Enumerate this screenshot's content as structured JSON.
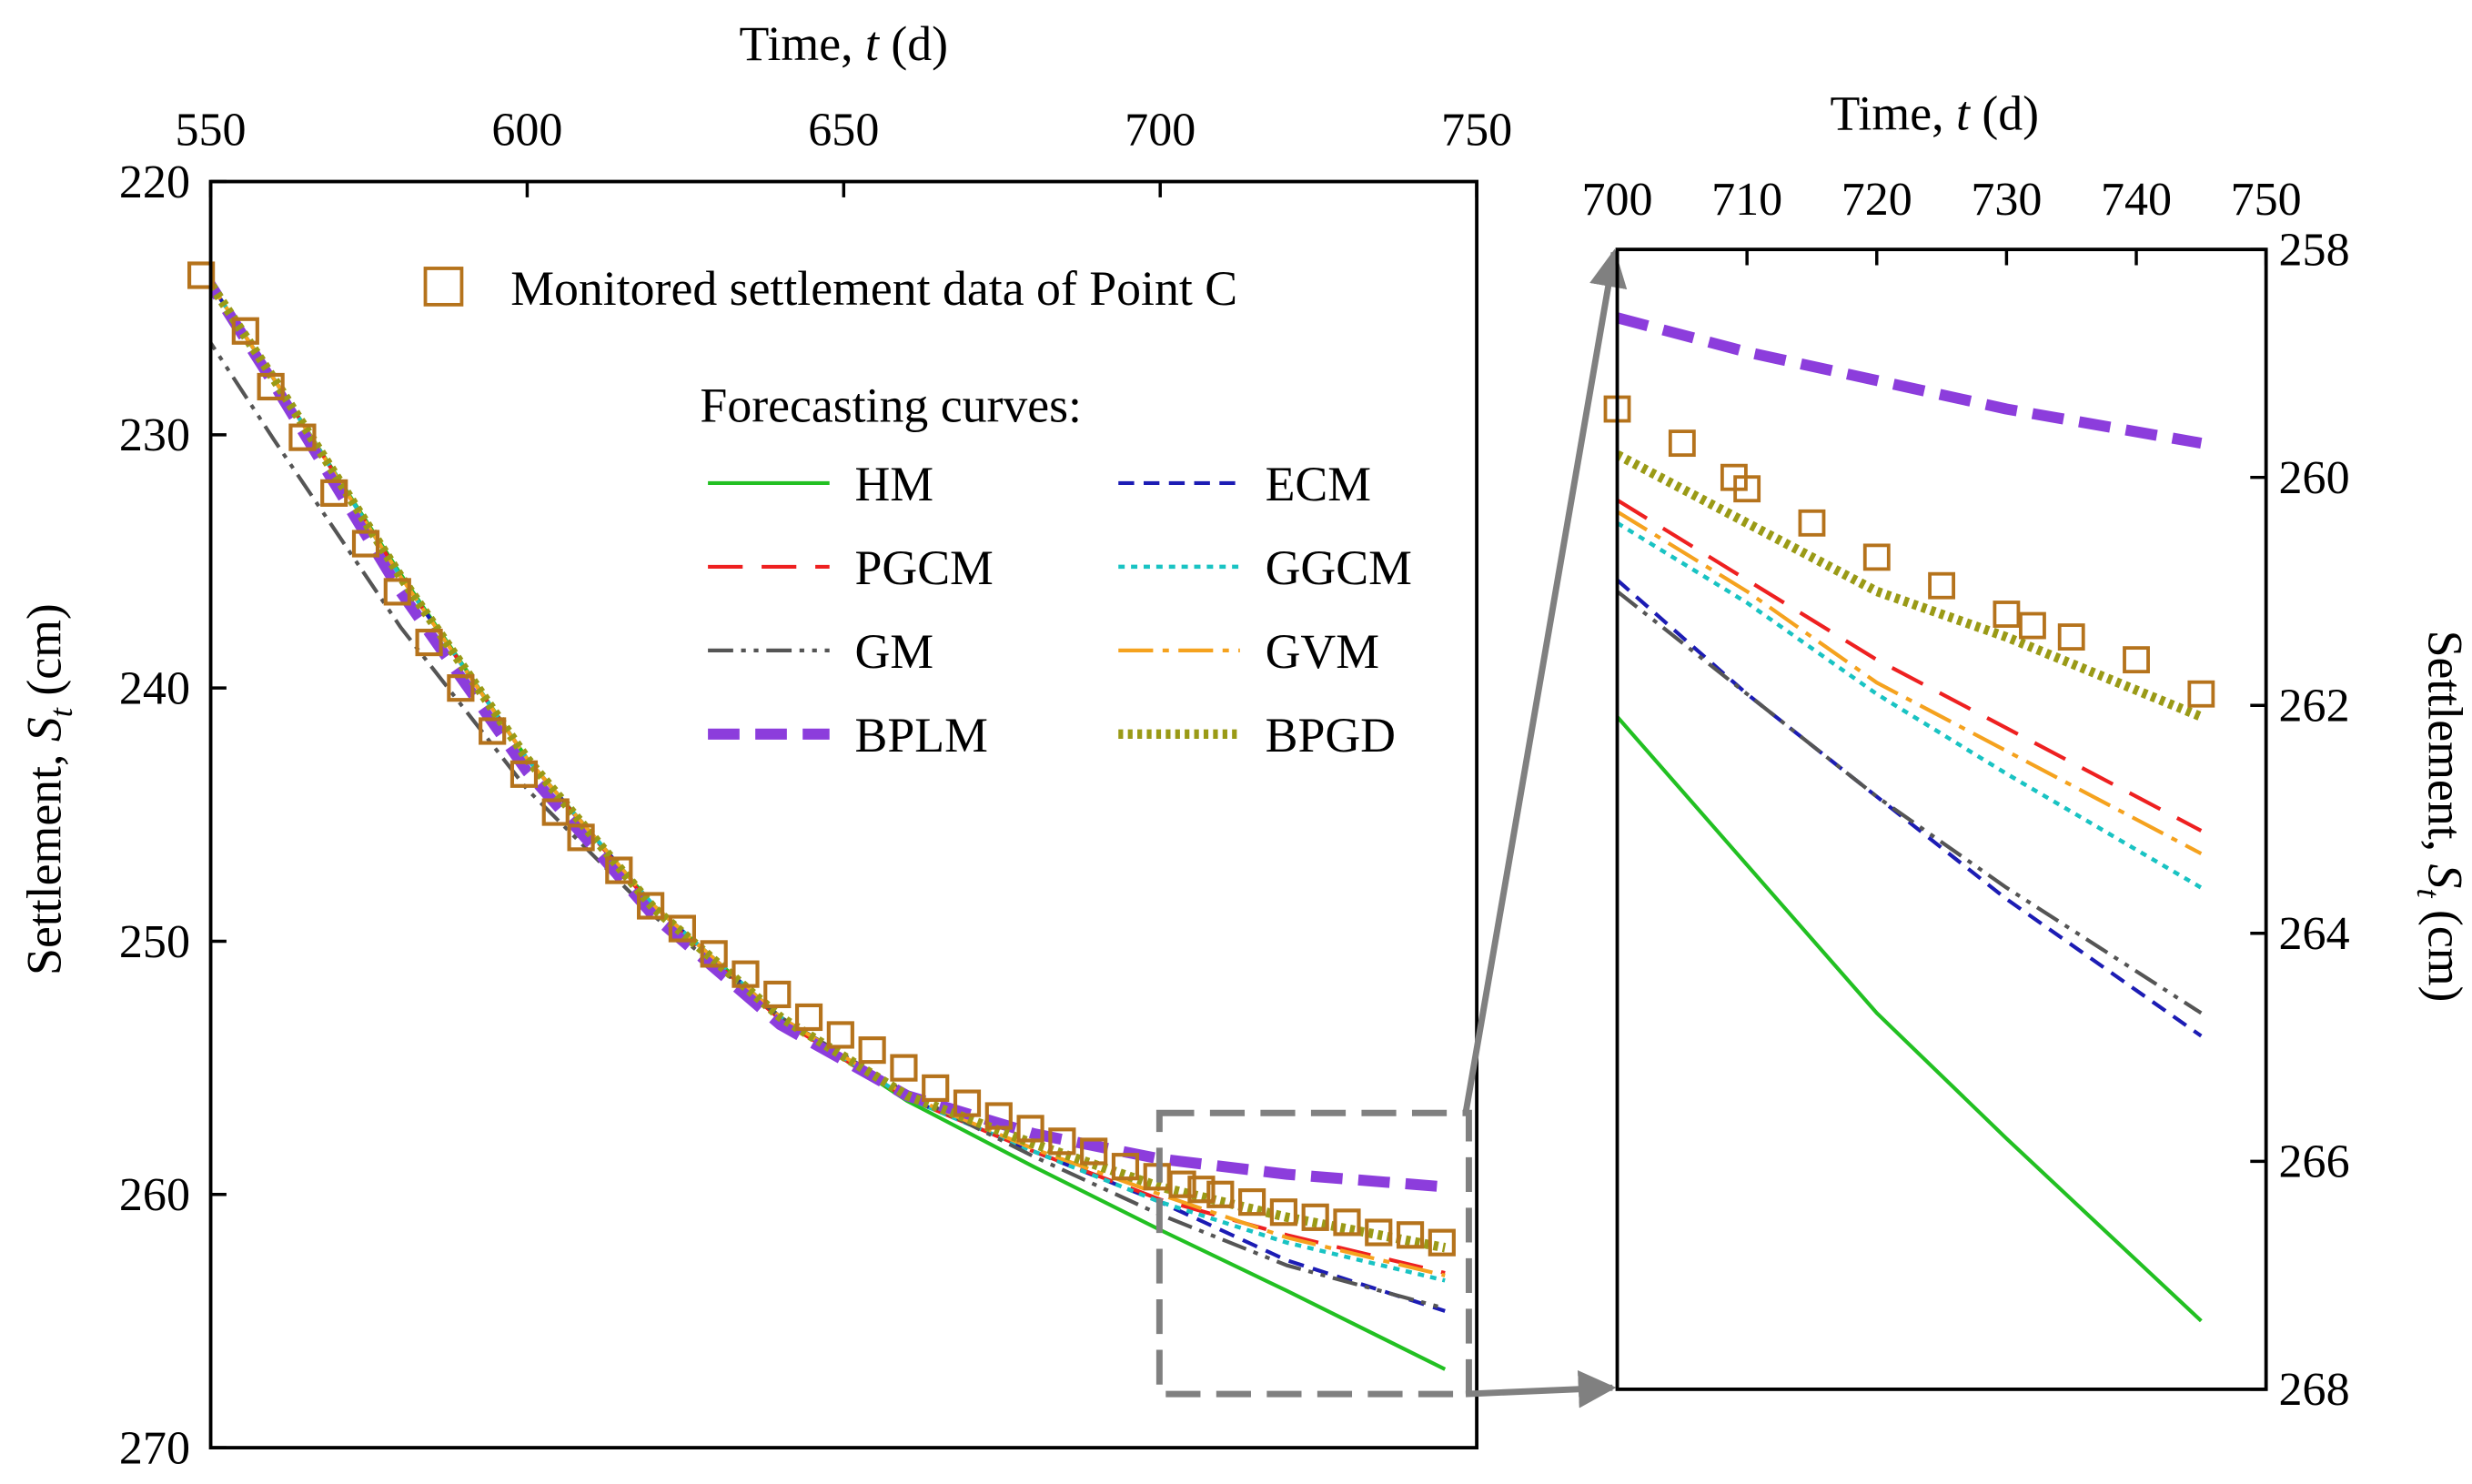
{
  "chart_data": [
    {
      "type": "line",
      "name": "main",
      "title": "",
      "xlabel": "Time, t (d)",
      "xlabel_parts": [
        "Time, ",
        "t",
        " (d)"
      ],
      "ylabel": "Settlement, St (cm)",
      "ylabel_parts": [
        "Settlement, ",
        "S",
        "t",
        " (cm)"
      ],
      "xlim": [
        550,
        750
      ],
      "ylim": [
        270,
        220
      ],
      "xticks": [
        550,
        600,
        650,
        700,
        750
      ],
      "yticks": [
        220,
        230,
        240,
        250,
        260,
        270
      ],
      "x_axis_position": "top",
      "y_axis_position": "left",
      "legend_title": "Forecasting curves:",
      "monitored": {
        "name": "Monitored settlement data of Point C",
        "color": "#b5731c",
        "points": [
          [
            548.5,
            223.7
          ],
          [
            555.5,
            225.9
          ],
          [
            559.5,
            228.1
          ],
          [
            564.5,
            230.1
          ],
          [
            569.5,
            232.3
          ],
          [
            574.5,
            234.3
          ],
          [
            579.5,
            236.2
          ],
          [
            584.5,
            238.2
          ],
          [
            589.5,
            240.0
          ],
          [
            594.5,
            241.7
          ],
          [
            599.5,
            243.4
          ],
          [
            604.5,
            244.9
          ],
          [
            608.5,
            245.9
          ],
          [
            614.5,
            247.2
          ],
          [
            619.5,
            248.6
          ],
          [
            624.5,
            249.5
          ],
          [
            629.5,
            250.5
          ],
          [
            634.5,
            251.3
          ],
          [
            639.5,
            252.1
          ],
          [
            644.5,
            253.0
          ],
          [
            649.5,
            253.7
          ],
          [
            654.5,
            254.3
          ],
          [
            659.5,
            255.0
          ],
          [
            664.5,
            255.8
          ],
          [
            669.5,
            256.4
          ],
          [
            674.5,
            256.9
          ],
          [
            679.5,
            257.4
          ],
          [
            684.5,
            257.9
          ],
          [
            689.5,
            258.3
          ],
          [
            694.5,
            258.9
          ],
          [
            699.5,
            259.3
          ],
          [
            703.5,
            259.6
          ],
          [
            706.5,
            259.8
          ],
          [
            709.5,
            260.0
          ],
          [
            714.5,
            260.3
          ],
          [
            719.5,
            260.7
          ],
          [
            724.5,
            260.9
          ],
          [
            729.5,
            261.1
          ],
          [
            734.5,
            261.5
          ],
          [
            739.5,
            261.6
          ],
          [
            744.5,
            261.9
          ]
        ]
      },
      "series": [
        {
          "name": "HM",
          "color": "#22c022",
          "dash": "",
          "width": 2.4,
          "points": [
            [
              548.5,
              223.5
            ],
            [
              560,
              227.8
            ],
            [
              580,
              235.5
            ],
            [
              600,
              242.8
            ],
            [
              620,
              248.6
            ],
            [
              640,
              253.0
            ],
            [
              660,
              256.3
            ],
            [
              680,
              258.9
            ],
            [
              700,
              261.4
            ],
            [
              720,
              263.8
            ],
            [
              745,
              266.9
            ]
          ]
        },
        {
          "name": "ECM",
          "color": "#1c1cb4",
          "dash": "10 6",
          "width": 2.4,
          "points": [
            [
              548.5,
              223.5
            ],
            [
              560,
              227.8
            ],
            [
              580,
              235.6
            ],
            [
              600,
              242.8
            ],
            [
              620,
              248.6
            ],
            [
              640,
              253.0
            ],
            [
              660,
              256.2
            ],
            [
              680,
              258.3
            ],
            [
              700,
              260.3
            ],
            [
              720,
              262.6
            ],
            [
              745,
              264.6
            ]
          ]
        },
        {
          "name": "PGCM",
          "color": "#ee2020",
          "dash": "22 12",
          "width": 2.4,
          "points": [
            [
              548.5,
              223.5
            ],
            [
              560,
              227.8
            ],
            [
              580,
              235.6
            ],
            [
              600,
              242.8
            ],
            [
              620,
              248.7
            ],
            [
              640,
              253.1
            ],
            [
              660,
              256.2
            ],
            [
              680,
              258.3
            ],
            [
              700,
              260.2
            ],
            [
              720,
              261.6
            ],
            [
              745,
              263.1
            ]
          ]
        },
        {
          "name": "GGCM",
          "color": "#19c3c3",
          "dash": "4 4",
          "width": 2.6,
          "points": [
            [
              548.5,
              223.5
            ],
            [
              560,
              227.8
            ],
            [
              580,
              235.6
            ],
            [
              600,
              242.8
            ],
            [
              620,
              248.6
            ],
            [
              640,
              253.0
            ],
            [
              660,
              256.2
            ],
            [
              680,
              258.3
            ],
            [
              700,
              260.3
            ],
            [
              720,
              261.9
            ],
            [
              745,
              263.4
            ]
          ]
        },
        {
          "name": "GM",
          "color": "#555555",
          "dash": "16 5 3 5 3 5",
          "width": 2.4,
          "points": [
            [
              548.5,
              225.8
            ],
            [
              560,
              230.2
            ],
            [
              580,
              237.6
            ],
            [
              600,
              244.0
            ],
            [
              620,
              249.0
            ],
            [
              640,
              253.0
            ],
            [
              660,
              256.0
            ],
            [
              680,
              258.5
            ],
            [
              700,
              260.8
            ],
            [
              720,
              262.8
            ],
            [
              745,
              264.5
            ]
          ]
        },
        {
          "name": "GVM",
          "color": "#f5a21e",
          "dash": "22 6 4 6",
          "width": 2.4,
          "points": [
            [
              548.5,
              223.5
            ],
            [
              560,
              227.8
            ],
            [
              580,
              235.6
            ],
            [
              600,
              242.8
            ],
            [
              620,
              248.6
            ],
            [
              640,
              253.0
            ],
            [
              660,
              256.1
            ],
            [
              680,
              258.2
            ],
            [
              700,
              260.0
            ],
            [
              720,
              261.7
            ],
            [
              745,
              263.2
            ]
          ]
        },
        {
          "name": "BPLM",
          "color": "#8c3ddc",
          "dash": "20 10",
          "width": 7,
          "points": [
            [
              548.5,
              223.5
            ],
            [
              560,
              228.0
            ],
            [
              580,
              236.2
            ],
            [
              600,
              243.3
            ],
            [
              620,
              249.0
            ],
            [
              640,
              253.3
            ],
            [
              660,
              256.1
            ],
            [
              680,
              257.6
            ],
            [
              700,
              258.6
            ],
            [
              720,
              259.2
            ],
            [
              745,
              259.7
            ]
          ]
        },
        {
          "name": "BPGD",
          "color": "#9a9a16",
          "dash": "3 3",
          "width": 6,
          "points": [
            [
              548.5,
              223.5
            ],
            [
              560,
              227.8
            ],
            [
              580,
              235.6
            ],
            [
              600,
              242.8
            ],
            [
              620,
              248.7
            ],
            [
              640,
              253.0
            ],
            [
              660,
              256.1
            ],
            [
              680,
              258.0
            ],
            [
              700,
              259.7
            ],
            [
              720,
              260.9
            ],
            [
              745,
              262.1
            ]
          ]
        }
      ]
    },
    {
      "type": "line",
      "name": "inset",
      "title": "",
      "xlabel": "Time, t (d)",
      "xlabel_parts": [
        "Time, ",
        "t",
        " (d)"
      ],
      "ylabel": "Settlement, St (cm)",
      "ylabel_parts": [
        "Settlement, ",
        "S",
        "t",
        " (cm)"
      ],
      "xlim": [
        700,
        750
      ],
      "ylim": [
        268,
        258
      ],
      "xticks": [
        700,
        710,
        720,
        730,
        740,
        750
      ],
      "yticks": [
        258,
        260,
        262,
        264,
        266,
        268
      ],
      "x_axis_position": "top",
      "y_axis_position": "right",
      "monitored_points": [
        [
          700,
          259.4
        ],
        [
          705,
          259.7
        ],
        [
          709,
          260.0
        ],
        [
          710,
          260.1
        ],
        [
          715,
          260.4
        ],
        [
          720,
          260.7
        ],
        [
          725,
          260.95
        ],
        [
          730,
          261.2
        ],
        [
          732,
          261.3
        ],
        [
          735,
          261.4
        ],
        [
          740,
          261.6
        ],
        [
          745,
          261.9
        ]
      ],
      "series": [
        {
          "name": "HM",
          "points": [
            [
              700,
              262.1
            ],
            [
              710,
              263.4
            ],
            [
              720,
              264.7
            ],
            [
              730,
              265.8
            ],
            [
              745,
              267.4
            ]
          ]
        },
        {
          "name": "ECM",
          "points": [
            [
              700,
              260.9
            ],
            [
              710,
              261.9
            ],
            [
              720,
              262.8
            ],
            [
              730,
              263.7
            ],
            [
              745,
              264.9
            ]
          ]
        },
        {
          "name": "GM",
          "points": [
            [
              700,
              261.0
            ],
            [
              710,
              261.9
            ],
            [
              720,
              262.8
            ],
            [
              730,
              263.6
            ],
            [
              745,
              264.7
            ]
          ]
        },
        {
          "name": "GGCM",
          "points": [
            [
              700,
              260.4
            ],
            [
              710,
              261.1
            ],
            [
              720,
              261.9
            ],
            [
              730,
              262.6
            ],
            [
              745,
              263.6
            ]
          ]
        },
        {
          "name": "GVM",
          "points": [
            [
              700,
              260.3
            ],
            [
              710,
              261.0
            ],
            [
              720,
              261.8
            ],
            [
              730,
              262.4
            ],
            [
              745,
              263.3
            ]
          ]
        },
        {
          "name": "PGCM",
          "points": [
            [
              700,
              260.2
            ],
            [
              710,
              260.9
            ],
            [
              720,
              261.6
            ],
            [
              730,
              262.2
            ],
            [
              745,
              263.1
            ]
          ]
        },
        {
          "name": "BPGD",
          "points": [
            [
              700,
              259.8
            ],
            [
              710,
              260.4
            ],
            [
              720,
              261.0
            ],
            [
              730,
              261.4
            ],
            [
              745,
              262.1
            ]
          ]
        },
        {
          "name": "BPLM",
          "points": [
            [
              700,
              258.6
            ],
            [
              710,
              258.9
            ],
            [
              720,
              259.15
            ],
            [
              730,
              259.4
            ],
            [
              745,
              259.7
            ]
          ]
        }
      ],
      "zoom_region": {
        "x": [
          700,
          750
        ],
        "y": [
          268,
          258
        ]
      }
    }
  ]
}
